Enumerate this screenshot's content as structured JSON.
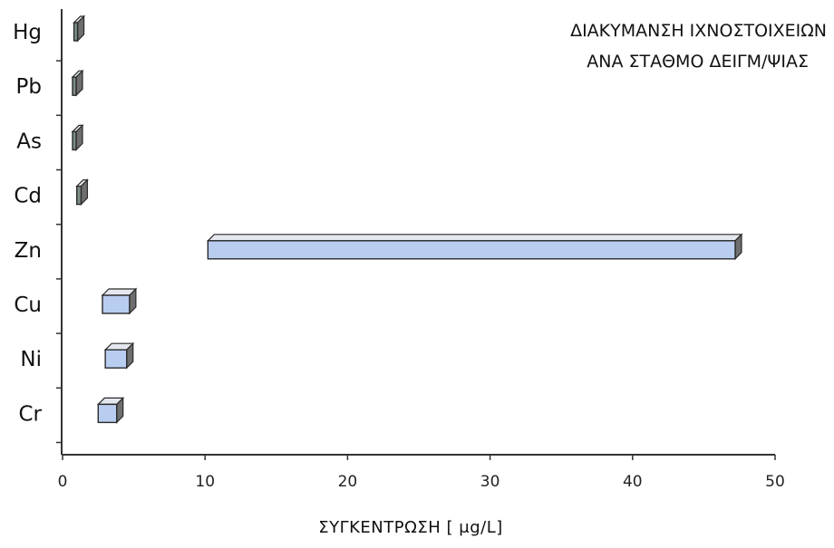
{
  "chart_data": {
    "type": "bar",
    "orientation": "horizontal",
    "style": "3d-floating-range",
    "title_lines": [
      "ΔΙΑΚΥΜΑΝΣΗ ΙΧΝΟΣΤΟΙΧΕΙΩΝ",
      "ΑΝΑ ΣΤΑΘΜΟ ΔΕΙΓΜ/ΨΙΑΣ"
    ],
    "xlabel": "ΣΥΓΚΕΝΤΡΩΣΗ [ μg/L]",
    "ylabel": "",
    "xlim": [
      0,
      50
    ],
    "xticks": [
      0,
      10,
      20,
      30,
      40,
      50
    ],
    "grid": false,
    "legend": "none",
    "categories": [
      "Hg",
      "Pb",
      "As",
      "Cd",
      "Zn",
      "Cu",
      "Ni",
      "Cr"
    ],
    "ranges": [
      {
        "category": "Hg",
        "min": 0.8,
        "max": 1.0
      },
      {
        "category": "Pb",
        "min": 0.7,
        "max": 0.9
      },
      {
        "category": "As",
        "min": 0.7,
        "max": 0.9
      },
      {
        "category": "Cd",
        "min": 1.0,
        "max": 1.3
      },
      {
        "category": "Zn",
        "min": 10.2,
        "max": 47.2
      },
      {
        "category": "Cu",
        "min": 2.8,
        "max": 4.7
      },
      {
        "category": "Ni",
        "min": 3.0,
        "max": 4.5
      },
      {
        "category": "Cr",
        "min": 2.5,
        "max": 3.8
      }
    ],
    "colors": {
      "front_light": "#b8cdf0",
      "front_dark": "#7d8f85",
      "top": "#e4e8ee",
      "side": "#6e6e6e",
      "edge": "#2a2a2a",
      "axis": "#333333"
    }
  }
}
